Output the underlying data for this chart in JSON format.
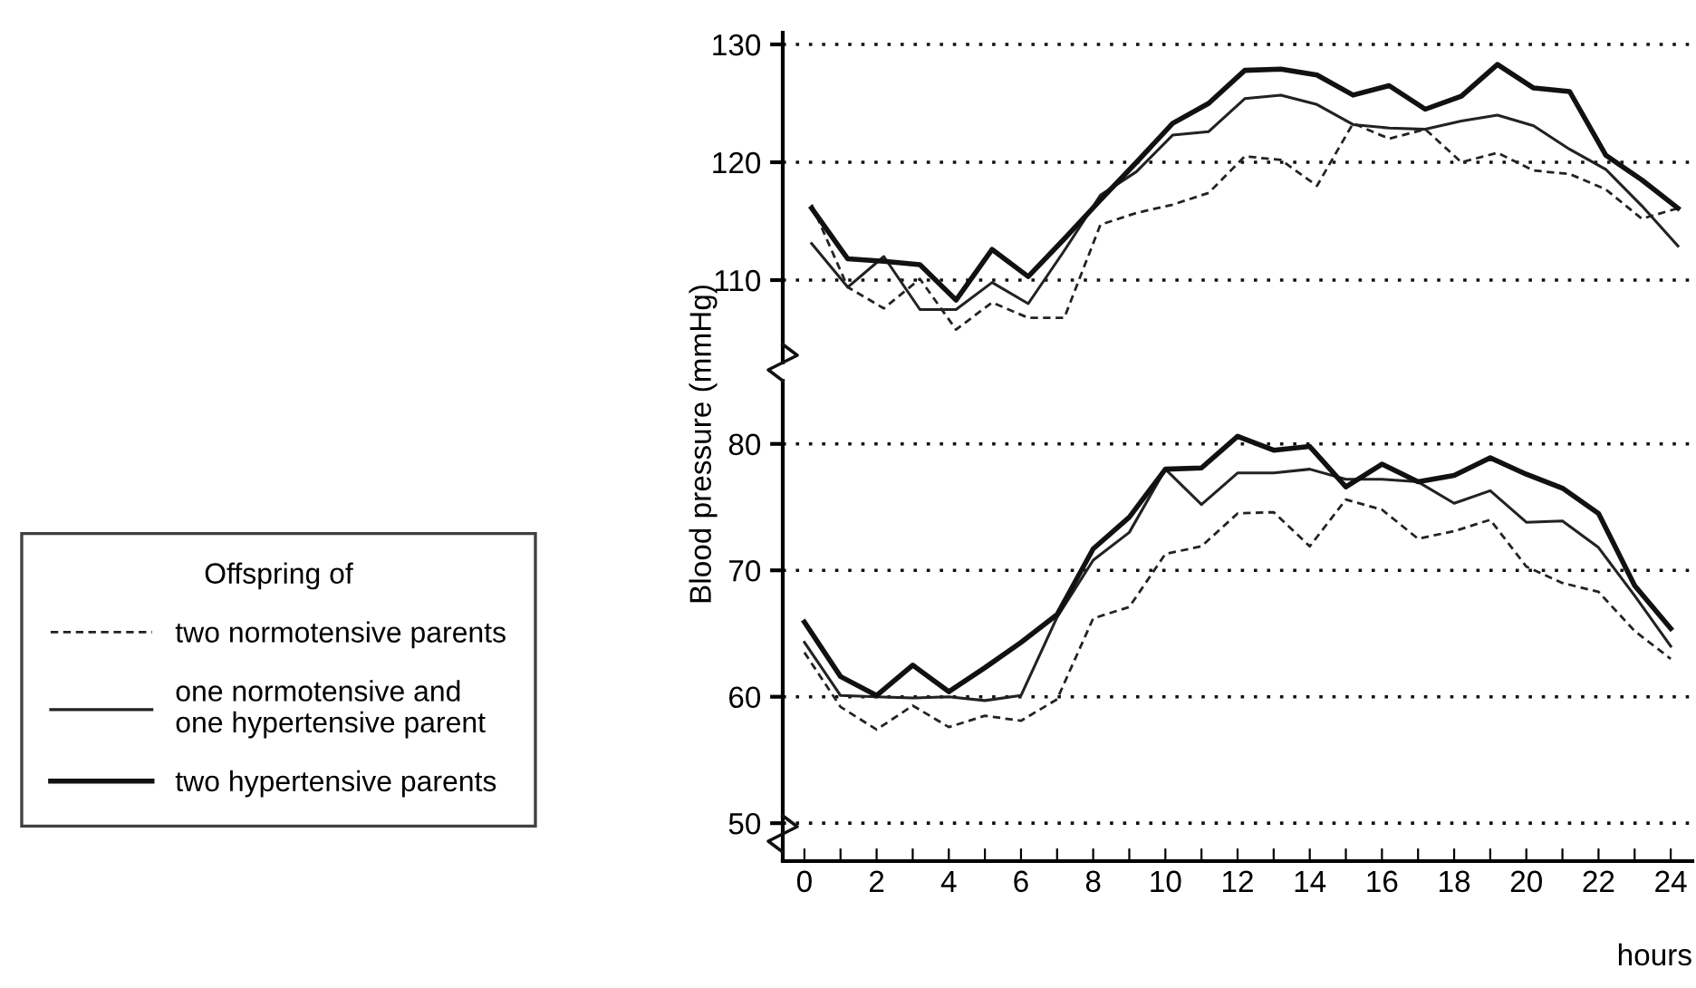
{
  "chart_data": [
    {
      "type": "line",
      "ylabel": "Blood pressure (mmHg)",
      "legend_title": "Offspring of",
      "legend": "left",
      "tick_labels": "y",
      "grid": "y",
      "x": [
        0.2,
        1.2,
        2.2,
        3.2,
        4.2,
        5.2,
        6.2,
        7.2,
        8.2,
        9.2,
        10.2,
        11.2,
        12.2,
        13.2,
        14.2,
        15.2,
        16.2,
        17.2,
        18.2,
        19.2,
        20.2,
        21.2,
        22.2,
        23.2,
        24.2
      ],
      "xlim": [
        -0.6,
        24.6
      ],
      "ylim": [
        103,
        131
      ],
      "yticks": [
        110,
        120,
        130
      ],
      "series": [
        {
          "name": "two normotensive parents",
          "color": "#222222",
          "line_style": "dashed",
          "values": [
            116.4,
            109.4,
            107.6,
            110.1,
            105.8,
            108.1,
            106.8,
            106.8,
            114.7,
            115.7,
            116.4,
            117.4,
            120.5,
            120.2,
            118.0,
            123.3,
            122.0,
            122.8,
            120.0,
            120.8,
            119.3,
            119.0,
            117.7,
            115.2,
            116.1
          ]
        },
        {
          "name": "one normotensive and\none hypertensive parent",
          "color": "#222222",
          "line_style": "solid",
          "values": [
            113.1,
            109.4,
            112.0,
            107.5,
            107.5,
            109.8,
            108.0,
            112.5,
            117.2,
            119.2,
            122.3,
            122.6,
            125.4,
            125.7,
            124.9,
            123.2,
            122.9,
            122.8,
            123.5,
            124.0,
            123.1,
            121.1,
            119.4,
            116.3,
            112.9
          ]
        },
        {
          "name": "two hypertensive parents",
          "color": "#111111",
          "line_style": "solid",
          "values": [
            116.1,
            111.8,
            111.6,
            111.3,
            108.3,
            112.6,
            110.3,
            113.5,
            116.8,
            120.0,
            123.3,
            125.0,
            127.8,
            127.9,
            127.4,
            125.7,
            126.5,
            124.5,
            125.6,
            128.3,
            126.3,
            126.0,
            120.6,
            118.5,
            116.1
          ]
        }
      ]
    },
    {
      "type": "line",
      "xlabel": "hours",
      "grid": "y",
      "x": [
        0,
        1,
        2,
        3,
        4,
        5,
        6,
        7,
        8,
        9,
        10,
        11,
        12,
        13,
        14,
        15,
        16,
        17,
        18,
        19,
        20,
        21,
        22,
        23,
        24
      ],
      "xlim": [
        -0.6,
        24.6
      ],
      "xticks": [
        0,
        {
          "value": 1,
          "label": null
        },
        2,
        {
          "value": 3,
          "label": null
        },
        4,
        {
          "value": 5,
          "label": null
        },
        6,
        {
          "value": 7,
          "label": null
        },
        8,
        {
          "value": 9,
          "label": null
        },
        10,
        {
          "value": 11,
          "label": null
        },
        12,
        {
          "value": 13,
          "label": null
        },
        14,
        {
          "value": 15,
          "label": null
        },
        16,
        {
          "value": 17,
          "label": null
        },
        18,
        {
          "value": 19,
          "label": null
        },
        20,
        {
          "value": 21,
          "label": null
        },
        22,
        {
          "value": 23,
          "label": null
        },
        24
      ],
      "ylim": [
        47,
        85
      ],
      "yticks": [
        50,
        60,
        70,
        80
      ],
      "series": [
        {
          "color": "#222222",
          "line_style": "dashed",
          "values": [
            63.5,
            59.2,
            57.4,
            59.3,
            57.6,
            58.5,
            58.1,
            59.8,
            66.2,
            67.1,
            71.3,
            71.9,
            74.5,
            74.6,
            71.9,
            75.6,
            74.8,
            72.5,
            73.1,
            74.0,
            70.3,
            69.0,
            68.3,
            65.2,
            63.0
          ]
        },
        {
          "color": "#222222",
          "line_style": "solid",
          "values": [
            64.3,
            60.1,
            60.0,
            59.9,
            60.0,
            59.7,
            60.1,
            66.3,
            70.8,
            73.0,
            78.0,
            75.2,
            77.7,
            77.7,
            78.0,
            77.2,
            77.2,
            77.0,
            75.3,
            76.3,
            73.8,
            73.9,
            71.8,
            68.0,
            64.0
          ]
        },
        {
          "color": "#111111",
          "line_style": "solid",
          "values": [
            65.9,
            61.6,
            60.1,
            62.5,
            60.4,
            62.3,
            64.3,
            66.5,
            71.7,
            74.2,
            78.0,
            78.1,
            80.6,
            79.5,
            79.8,
            76.6,
            78.4,
            77.0,
            77.5,
            78.9,
            77.6,
            76.5,
            74.5,
            68.8,
            65.4
          ]
        }
      ]
    }
  ]
}
